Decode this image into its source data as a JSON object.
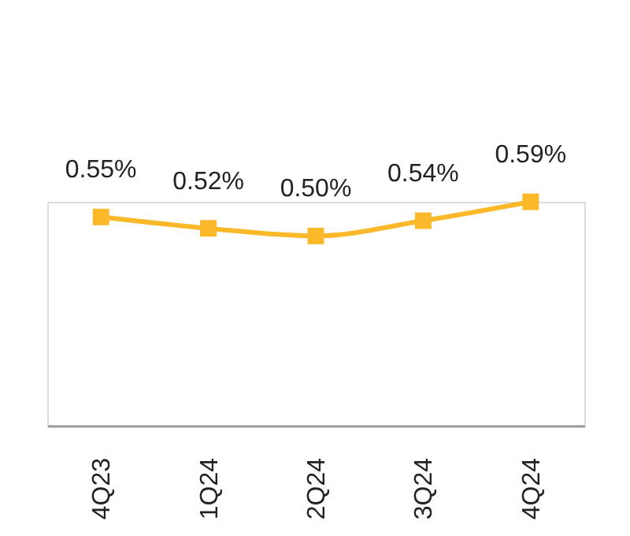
{
  "chart_data": {
    "type": "line",
    "categories": [
      "4Q23",
      "1Q24",
      "2Q24",
      "3Q24",
      "4Q24"
    ],
    "values": [
      0.55,
      0.52,
      0.5,
      0.54,
      0.59
    ],
    "value_labels": [
      "0.55%",
      "0.52%",
      "0.50%",
      "0.54%",
      "0.59%"
    ],
    "color": "#fbb829",
    "marker": "square",
    "line_style": "solid"
  }
}
